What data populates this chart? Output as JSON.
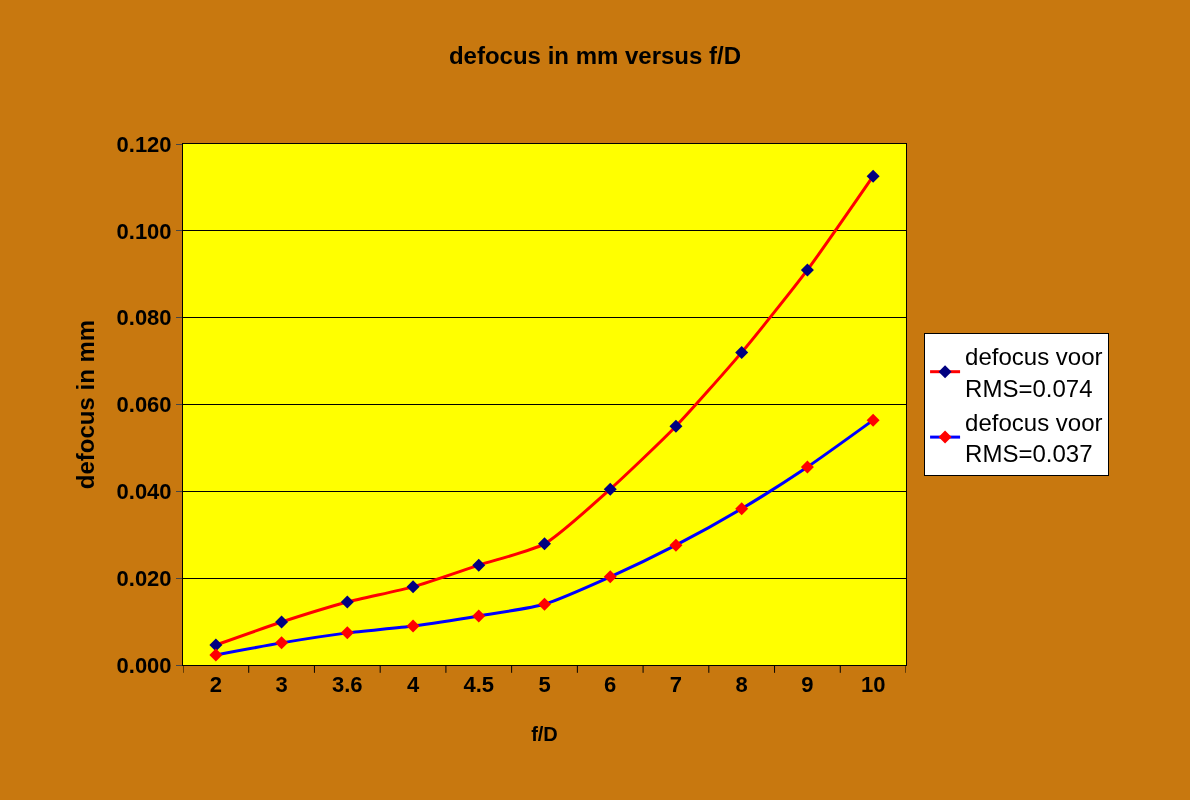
{
  "chart_data": {
    "type": "line",
    "title": "defocus in mm versus f/D",
    "xlabel": "f/D",
    "ylabel": "defocus in mm",
    "categories": [
      "2",
      "3",
      "3.6",
      "4",
      "4.5",
      "5",
      "6",
      "7",
      "8",
      "9",
      "10"
    ],
    "series": [
      {
        "name": "defocus voor RMS=0.074",
        "color": "#ff0000",
        "colors": [
          "#000080",
          "#000080",
          "#000080",
          "#000080",
          "#000080",
          "#000080",
          "#000080",
          "#000080",
          "#000080",
          "#000080",
          "#000080"
        ],
        "values": [
          0.0046,
          0.0099,
          0.0145,
          0.018,
          0.023,
          0.0279,
          0.0405,
          0.055,
          0.072,
          0.091,
          0.1126
        ]
      },
      {
        "name": "defocus voor RMS=0.037",
        "color": "#0000ff",
        "colors": [
          "#ff0000",
          "#ff0000",
          "#ff0000",
          "#ff0000",
          "#ff0000",
          "#ff0000",
          "#ff0000",
          "#ff0000",
          "#ff0000",
          "#ff0000",
          "#ff0000"
        ],
        "values": [
          0.0023,
          0.0051,
          0.0074,
          0.009,
          0.0113,
          0.014,
          0.0203,
          0.0276,
          0.036,
          0.0456,
          0.0564
        ]
      }
    ],
    "ylim": [
      0,
      0.12
    ],
    "yticks": [
      {
        "value": 0,
        "label": "0.000"
      },
      {
        "value": 0.02,
        "label": "0.020"
      },
      {
        "value": 0.04,
        "label": "0.040"
      },
      {
        "value": 0.06,
        "label": "0.060"
      },
      {
        "value": 0.08,
        "label": "0.080"
      },
      {
        "value": 0.1,
        "label": "0.100"
      },
      {
        "value": 0.12,
        "label": "0.120"
      }
    ],
    "grid": "y",
    "legend": "right",
    "marker": "diamond",
    "line_style": "solid"
  }
}
